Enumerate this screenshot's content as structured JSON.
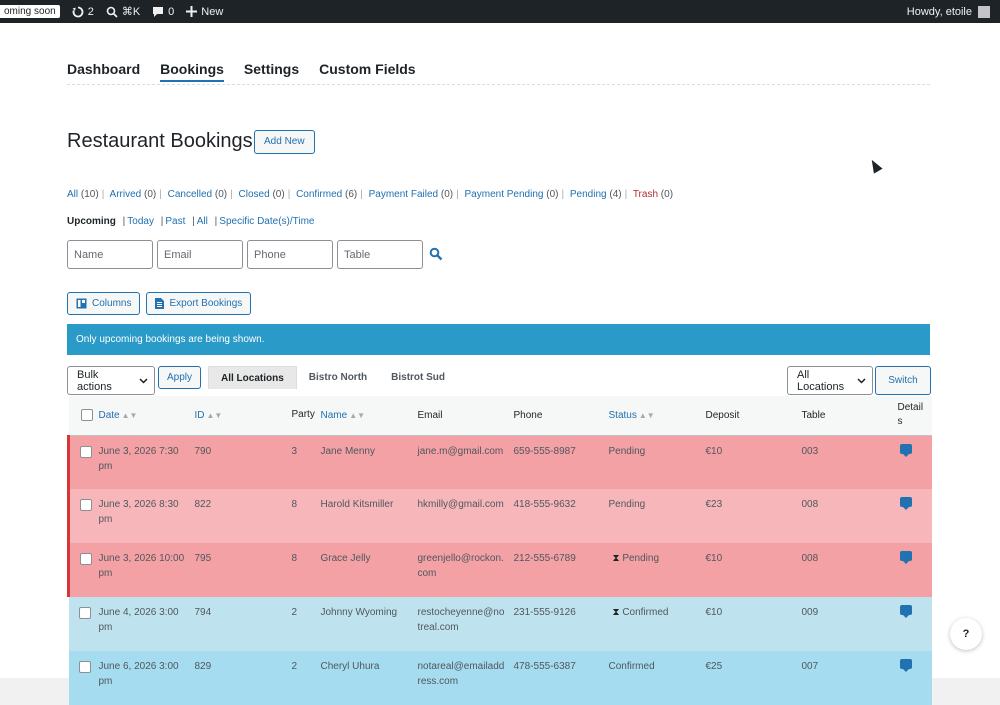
{
  "admin_bar": {
    "coming_soon": "oming soon",
    "updates_count": "2",
    "search_shortcut": "⌘K",
    "comments_count": "0",
    "new_label": "New",
    "howdy": "Howdy, etoile"
  },
  "nav": {
    "tabs": [
      {
        "label": "Dashboard"
      },
      {
        "label": "Bookings"
      },
      {
        "label": "Settings"
      },
      {
        "label": "Custom Fields"
      }
    ],
    "active": "Bookings"
  },
  "page": {
    "title": "Restaurant Bookings",
    "add_new": "Add New"
  },
  "status_links": [
    {
      "label": "All",
      "count": "(10)"
    },
    {
      "label": "Arrived",
      "count": "(0)"
    },
    {
      "label": "Cancelled",
      "count": "(0)"
    },
    {
      "label": "Closed",
      "count": "(0)"
    },
    {
      "label": "Confirmed",
      "count": "(6)"
    },
    {
      "label": "Payment Failed",
      "count": "(0)"
    },
    {
      "label": "Payment Pending",
      "count": "(0)"
    },
    {
      "label": "Pending",
      "count": "(4)"
    },
    {
      "label": "Trash",
      "count": "(0)"
    }
  ],
  "date_filters": {
    "current": "Upcoming",
    "links": [
      "Today",
      "Past",
      "All",
      "Specific Date(s)/Time"
    ]
  },
  "search_fields": {
    "name_placeholder": "Name",
    "email_placeholder": "Email",
    "phone_placeholder": "Phone",
    "table_placeholder": "Table"
  },
  "buttons": {
    "columns": "Columns",
    "export": "Export Bookings"
  },
  "notice": "Only upcoming bookings are being shown.",
  "toolbar": {
    "bulk_actions": "Bulk actions",
    "apply": "Apply",
    "location_tabs": [
      "All Locations",
      "Bistro North",
      "Bistrot Sud"
    ],
    "location_select": "All Locations",
    "switch": "Switch"
  },
  "table": {
    "columns": {
      "date": "Date",
      "id": "ID",
      "party": "Party",
      "name": "Name",
      "email": "Email",
      "phone": "Phone",
      "status": "Status",
      "deposit": "Deposit",
      "table": "Table",
      "details": "Details"
    },
    "rows": [
      {
        "date": "June 3, 2026 7:30 pm",
        "id": "790",
        "party": "3",
        "name": "Jane Menny",
        "email": "jane.m@gmail.com",
        "phone": "659-555-8987",
        "status": "Pending",
        "deposit": "€10",
        "table": "003",
        "style": "pending",
        "icon": ""
      },
      {
        "date": "June 3, 2026 8:30 pm",
        "id": "822",
        "party": "8",
        "name": "Harold Kitsmiller",
        "email": "hkmilly@gmail.com",
        "phone": "418-555-9632",
        "status": "Pending",
        "deposit": "€23",
        "table": "008",
        "style": "pending-light",
        "icon": ""
      },
      {
        "date": "June 3, 2026 10:00 pm",
        "id": "795",
        "party": "8",
        "name": "Grace Jelly",
        "email": "greenjello@rockon.com",
        "phone": "212-555-6789",
        "status": "Pending",
        "deposit": "€10",
        "table": "008",
        "style": "pending",
        "icon": "⧗"
      },
      {
        "date": "June 4, 2026 3:00 pm",
        "id": "794",
        "party": "2",
        "name": "Johnny Wyoming",
        "email": "restocheyenne@notreal.com",
        "phone": "231-555-9126",
        "status": "Confirmed",
        "deposit": "€10",
        "table": "009",
        "style": "confirmed",
        "icon": "⧗"
      },
      {
        "date": "June 6, 2026 3:00 pm",
        "id": "829",
        "party": "2",
        "name": "Cheryl Uhura",
        "email": "notareal@emailaddress.com",
        "phone": "478-555-6387",
        "status": "Confirmed",
        "deposit": "€25",
        "table": "007",
        "style": "confirmed-b",
        "icon": ""
      }
    ]
  },
  "help_label": "?"
}
